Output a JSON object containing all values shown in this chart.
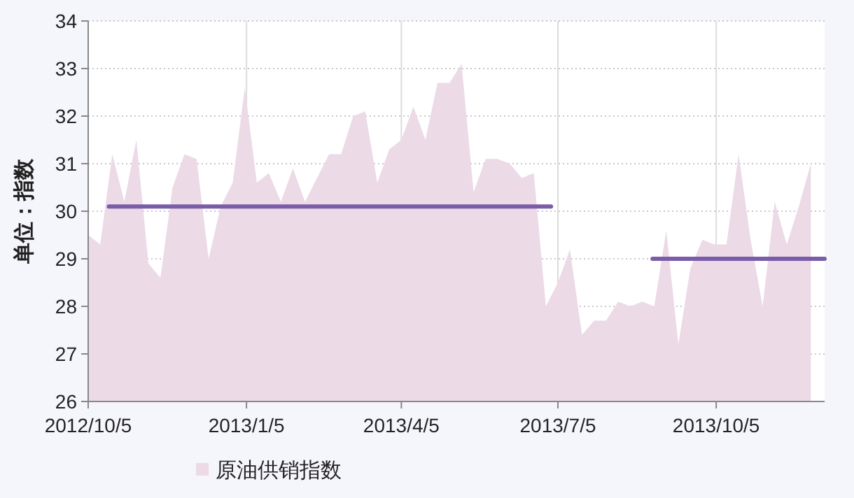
{
  "chart_data": {
    "type": "area",
    "ylabel": "单位：指数",
    "x": [
      "2012-10-05",
      "2012-10-12",
      "2012-10-19",
      "2012-10-26",
      "2012-11-02",
      "2012-11-09",
      "2012-11-16",
      "2012-11-23",
      "2012-11-30",
      "2012-12-07",
      "2012-12-14",
      "2012-12-21",
      "2012-12-28",
      "2013-01-04",
      "2013-01-11",
      "2013-01-18",
      "2013-01-25",
      "2013-02-01",
      "2013-02-08",
      "2013-02-15",
      "2013-02-22",
      "2013-03-01",
      "2013-03-08",
      "2013-03-15",
      "2013-03-22",
      "2013-03-29",
      "2013-04-05",
      "2013-04-12",
      "2013-04-19",
      "2013-04-26",
      "2013-05-03",
      "2013-05-10",
      "2013-05-17",
      "2013-05-24",
      "2013-05-31",
      "2013-06-07",
      "2013-06-14",
      "2013-06-21",
      "2013-06-28",
      "2013-07-05",
      "2013-07-12",
      "2013-07-19",
      "2013-07-26",
      "2013-08-02",
      "2013-08-09",
      "2013-08-16",
      "2013-08-23",
      "2013-08-30",
      "2013-09-06",
      "2013-09-13",
      "2013-09-20",
      "2013-09-27",
      "2013-10-04",
      "2013-10-11",
      "2013-10-18",
      "2013-10-25",
      "2013-11-01",
      "2013-11-08",
      "2013-11-15",
      "2013-11-22",
      "2013-11-29"
    ],
    "series": [
      {
        "name": "原油供销指数",
        "color": "#ecdae6",
        "values": [
          29.5,
          29.3,
          31.2,
          30.2,
          31.5,
          28.9,
          28.6,
          30.5,
          31.2,
          31.1,
          29.0,
          30.1,
          30.6,
          32.6,
          30.6,
          30.8,
          30.2,
          30.9,
          30.2,
          30.7,
          31.2,
          31.2,
          32.0,
          32.1,
          30.6,
          31.3,
          31.5,
          32.2,
          31.5,
          32.7,
          32.7,
          33.1,
          30.4,
          31.1,
          31.1,
          31.0,
          30.7,
          30.8,
          28.0,
          28.5,
          29.2,
          27.4,
          27.7,
          27.7,
          28.1,
          28.0,
          28.1,
          28.0,
          29.6,
          27.2,
          28.8,
          29.4,
          29.3,
          29.3,
          31.2,
          29.4,
          28.0,
          30.2,
          29.3,
          30.1,
          31.0
        ]
      },
      {
        "type": "line",
        "color": "#7a5ca8",
        "x": [
          "2012-10-17",
          "2013-07-01"
        ],
        "values": [
          30.1,
          30.1
        ]
      },
      {
        "type": "line",
        "color": "#7a5ca8",
        "x": [
          "2013-08-29",
          "2013-12-07"
        ],
        "values": [
          29.0,
          29.0
        ]
      }
    ],
    "xlim": [
      "2012-10-05",
      "2013-12-07"
    ],
    "xticks": [
      {
        "value": "2012-10-05",
        "label": "2012/10/5"
      },
      {
        "value": "2013-01-05",
        "label": "2013/1/5"
      },
      {
        "value": "2013-04-05",
        "label": "2013/4/5"
      },
      {
        "value": "2013-07-05",
        "label": "2013/7/5"
      },
      {
        "value": "2013-10-05",
        "label": "2013/10/5"
      }
    ],
    "ylim": [
      26,
      34
    ],
    "yticks": [
      26,
      27,
      28,
      29,
      30,
      31,
      32,
      33,
      34
    ],
    "grid": true,
    "legend": "bottom left"
  }
}
